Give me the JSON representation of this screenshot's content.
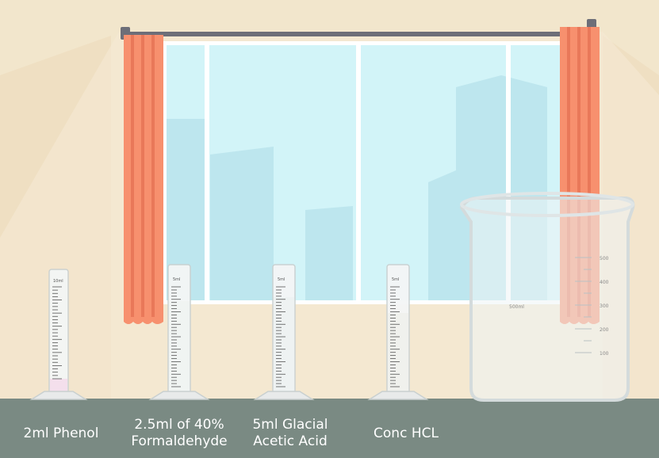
{
  "scene": {
    "colors": {
      "wall": "#f2e6cc",
      "wall_shade": "#e5d4b3",
      "floor": "#7a8a83",
      "curtain": "#f7906e",
      "curtain_dark": "#e97859",
      "rod": "#6d6e78",
      "window_sky": "#d2f4f8",
      "window_frame": "#ffffff",
      "buildings": "#b7e5ee"
    }
  },
  "cylinders": [
    {
      "id": "phenol",
      "top_mark": "10ml",
      "line1": "2ml Phenol",
      "line2": ""
    },
    {
      "id": "formaldehyde",
      "top_mark": "5ml",
      "line1": "2.5ml of 40%",
      "line2": "Formaldehyde"
    },
    {
      "id": "acetic",
      "top_mark": "5ml",
      "line1": "5ml Glacial",
      "line2": "Acetic Acid"
    },
    {
      "id": "hcl",
      "top_mark": "5ml",
      "line1": "Conc HCL",
      "line2": ""
    }
  ],
  "beaker": {
    "capacity_label": "500ml",
    "scale": [
      "500",
      "400",
      "300",
      "200",
      "100"
    ]
  }
}
